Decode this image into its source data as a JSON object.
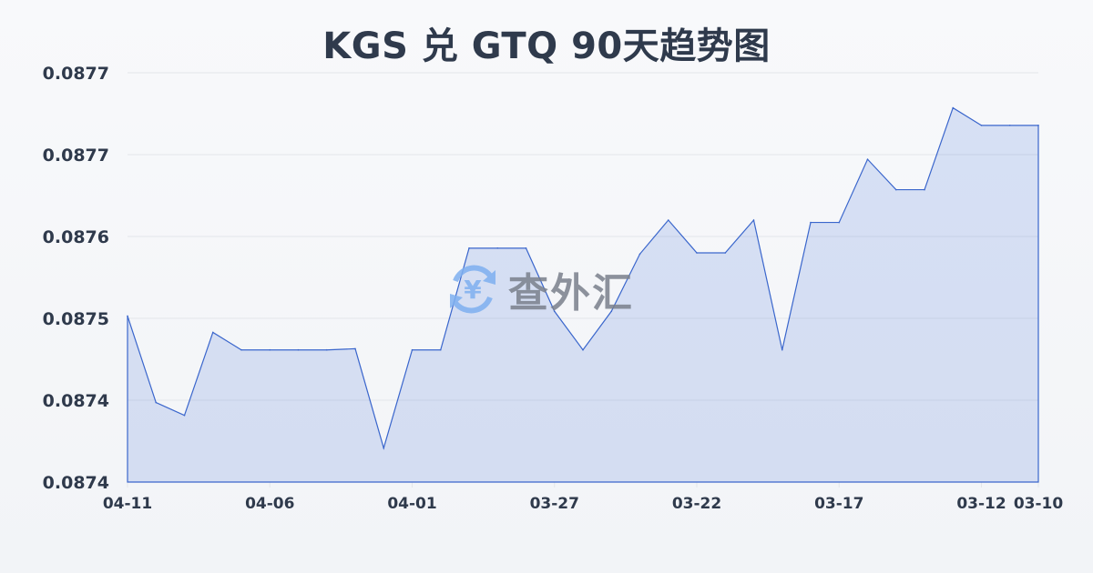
{
  "chart_data": {
    "type": "area",
    "title": "KGS 兑 GTQ 90天趋势图",
    "xlabel": "",
    "ylabel": "",
    "x": [
      "04-11",
      "04-10",
      "04-09",
      "04-08",
      "04-07",
      "04-06",
      "04-05",
      "04-04",
      "04-03",
      "04-02",
      "04-01",
      "03-31",
      "03-30",
      "03-29",
      "03-28",
      "03-27",
      "03-26",
      "03-25",
      "03-24",
      "03-23",
      "03-22",
      "03-21",
      "03-20",
      "03-19",
      "03-18",
      "03-17",
      "03-16",
      "03-15",
      "03-14",
      "03-13",
      "03-12",
      "03-11",
      "03-10"
    ],
    "values": [
      0.087522,
      0.087448,
      0.087437,
      0.087508,
      0.087493,
      0.087493,
      0.087493,
      0.087493,
      0.087494,
      0.087409,
      0.087493,
      0.087493,
      0.08758,
      0.08758,
      0.08758,
      0.087526,
      0.087493,
      0.087526,
      0.087575,
      0.087604,
      0.087576,
      0.087576,
      0.087604,
      0.087493,
      0.087602,
      0.087602,
      0.087656,
      0.08763,
      0.08763,
      0.0877,
      0.087685,
      0.087685,
      0.087685
    ],
    "ylim": [
      0.08738,
      0.08773
    ],
    "y_ticks": [
      0.08738,
      0.08745,
      0.08752,
      0.08759,
      0.08766,
      0.08773
    ],
    "y_tick_labels": [
      "0.0874",
      "0.0874",
      "0.0875",
      "0.0876",
      "0.0877",
      "0.0877"
    ],
    "x_tick_labels": [
      "04-11",
      "04-06",
      "04-01",
      "03-27",
      "03-22",
      "03-17",
      "03-12",
      "03-10"
    ],
    "grid": true,
    "legend": "none",
    "colors": {
      "line": "#3a66cc",
      "fill": "#3b6cd4",
      "grid": "#e3e6ea",
      "text": "#2f3a4c"
    }
  },
  "watermark": {
    "text": "查外汇",
    "icon": "yen-exchange-icon",
    "icon_color": "#7fb0f0"
  }
}
